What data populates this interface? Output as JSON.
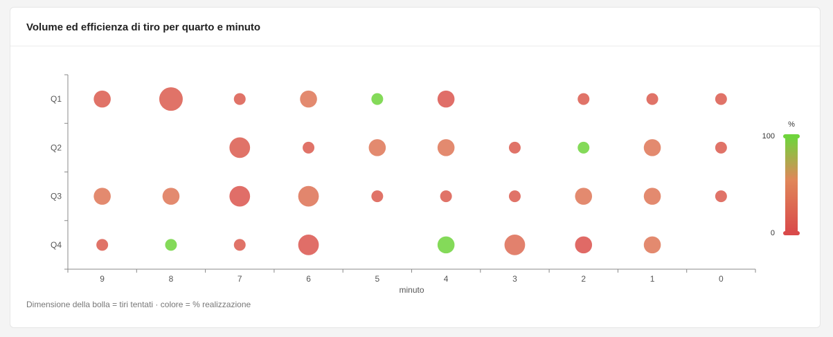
{
  "card": {
    "title": "Volume ed efficienza di tiro per quarto e minuto",
    "caption": "Dimensione della bolla = tiri tentati · colore = % realizzazione"
  },
  "chart_data": {
    "type": "scatter",
    "title": "Volume ed efficienza di tiro per quarto e minuto",
    "xlabel": "minuto",
    "ylabel": "",
    "x_categories": [
      "9",
      "8",
      "7",
      "6",
      "5",
      "4",
      "3",
      "2",
      "1",
      "0"
    ],
    "y_categories": [
      "Q1",
      "Q2",
      "Q3",
      "Q4"
    ],
    "legend": {
      "title": "%",
      "max_label": "100",
      "min_label": "0",
      "position": "right",
      "colors": [
        "#d94a4a",
        "#e0875a",
        "#6fd43c"
      ]
    },
    "points": [
      {
        "quarter": "Q1",
        "minute": "9",
        "size": 3,
        "pct": 15
      },
      {
        "quarter": "Q1",
        "minute": "8",
        "size": 7,
        "pct": 15
      },
      {
        "quarter": "Q1",
        "minute": "7",
        "size": 1,
        "pct": 15
      },
      {
        "quarter": "Q1",
        "minute": "6",
        "size": 3,
        "pct": 40
      },
      {
        "quarter": "Q1",
        "minute": "5",
        "size": 1,
        "pct": 100
      },
      {
        "quarter": "Q1",
        "minute": "4",
        "size": 3,
        "pct": 10
      },
      {
        "quarter": "Q1",
        "minute": "2",
        "size": 1,
        "pct": 15
      },
      {
        "quarter": "Q1",
        "minute": "1",
        "size": 1,
        "pct": 15
      },
      {
        "quarter": "Q1",
        "minute": "0",
        "size": 1,
        "pct": 15
      },
      {
        "quarter": "Q2",
        "minute": "7",
        "size": 5,
        "pct": 15
      },
      {
        "quarter": "Q2",
        "minute": "6",
        "size": 1,
        "pct": 15
      },
      {
        "quarter": "Q2",
        "minute": "5",
        "size": 3,
        "pct": 40
      },
      {
        "quarter": "Q2",
        "minute": "4",
        "size": 3,
        "pct": 40
      },
      {
        "quarter": "Q2",
        "minute": "3",
        "size": 1,
        "pct": 15
      },
      {
        "quarter": "Q2",
        "minute": "2",
        "size": 1,
        "pct": 100
      },
      {
        "quarter": "Q2",
        "minute": "1",
        "size": 3,
        "pct": 40
      },
      {
        "quarter": "Q2",
        "minute": "0",
        "size": 1,
        "pct": 15
      },
      {
        "quarter": "Q3",
        "minute": "9",
        "size": 3,
        "pct": 40
      },
      {
        "quarter": "Q3",
        "minute": "8",
        "size": 3,
        "pct": 40
      },
      {
        "quarter": "Q3",
        "minute": "7",
        "size": 5,
        "pct": 10
      },
      {
        "quarter": "Q3",
        "minute": "6",
        "size": 5,
        "pct": 35
      },
      {
        "quarter": "Q3",
        "minute": "5",
        "size": 1,
        "pct": 15
      },
      {
        "quarter": "Q3",
        "minute": "4",
        "size": 1,
        "pct": 15
      },
      {
        "quarter": "Q3",
        "minute": "3",
        "size": 1,
        "pct": 15
      },
      {
        "quarter": "Q3",
        "minute": "2",
        "size": 3,
        "pct": 40
      },
      {
        "quarter": "Q3",
        "minute": "1",
        "size": 3,
        "pct": 40
      },
      {
        "quarter": "Q3",
        "minute": "0",
        "size": 1,
        "pct": 15
      },
      {
        "quarter": "Q4",
        "minute": "9",
        "size": 1,
        "pct": 15
      },
      {
        "quarter": "Q4",
        "minute": "8",
        "size": 1,
        "pct": 100
      },
      {
        "quarter": "Q4",
        "minute": "7",
        "size": 1,
        "pct": 15
      },
      {
        "quarter": "Q4",
        "minute": "6",
        "size": 5,
        "pct": 10
      },
      {
        "quarter": "Q4",
        "minute": "4",
        "size": 3,
        "pct": 100
      },
      {
        "quarter": "Q4",
        "minute": "3",
        "size": 5,
        "pct": 30
      },
      {
        "quarter": "Q4",
        "minute": "2",
        "size": 3,
        "pct": 5
      },
      {
        "quarter": "Q4",
        "minute": "1",
        "size": 3,
        "pct": 40
      }
    ]
  }
}
